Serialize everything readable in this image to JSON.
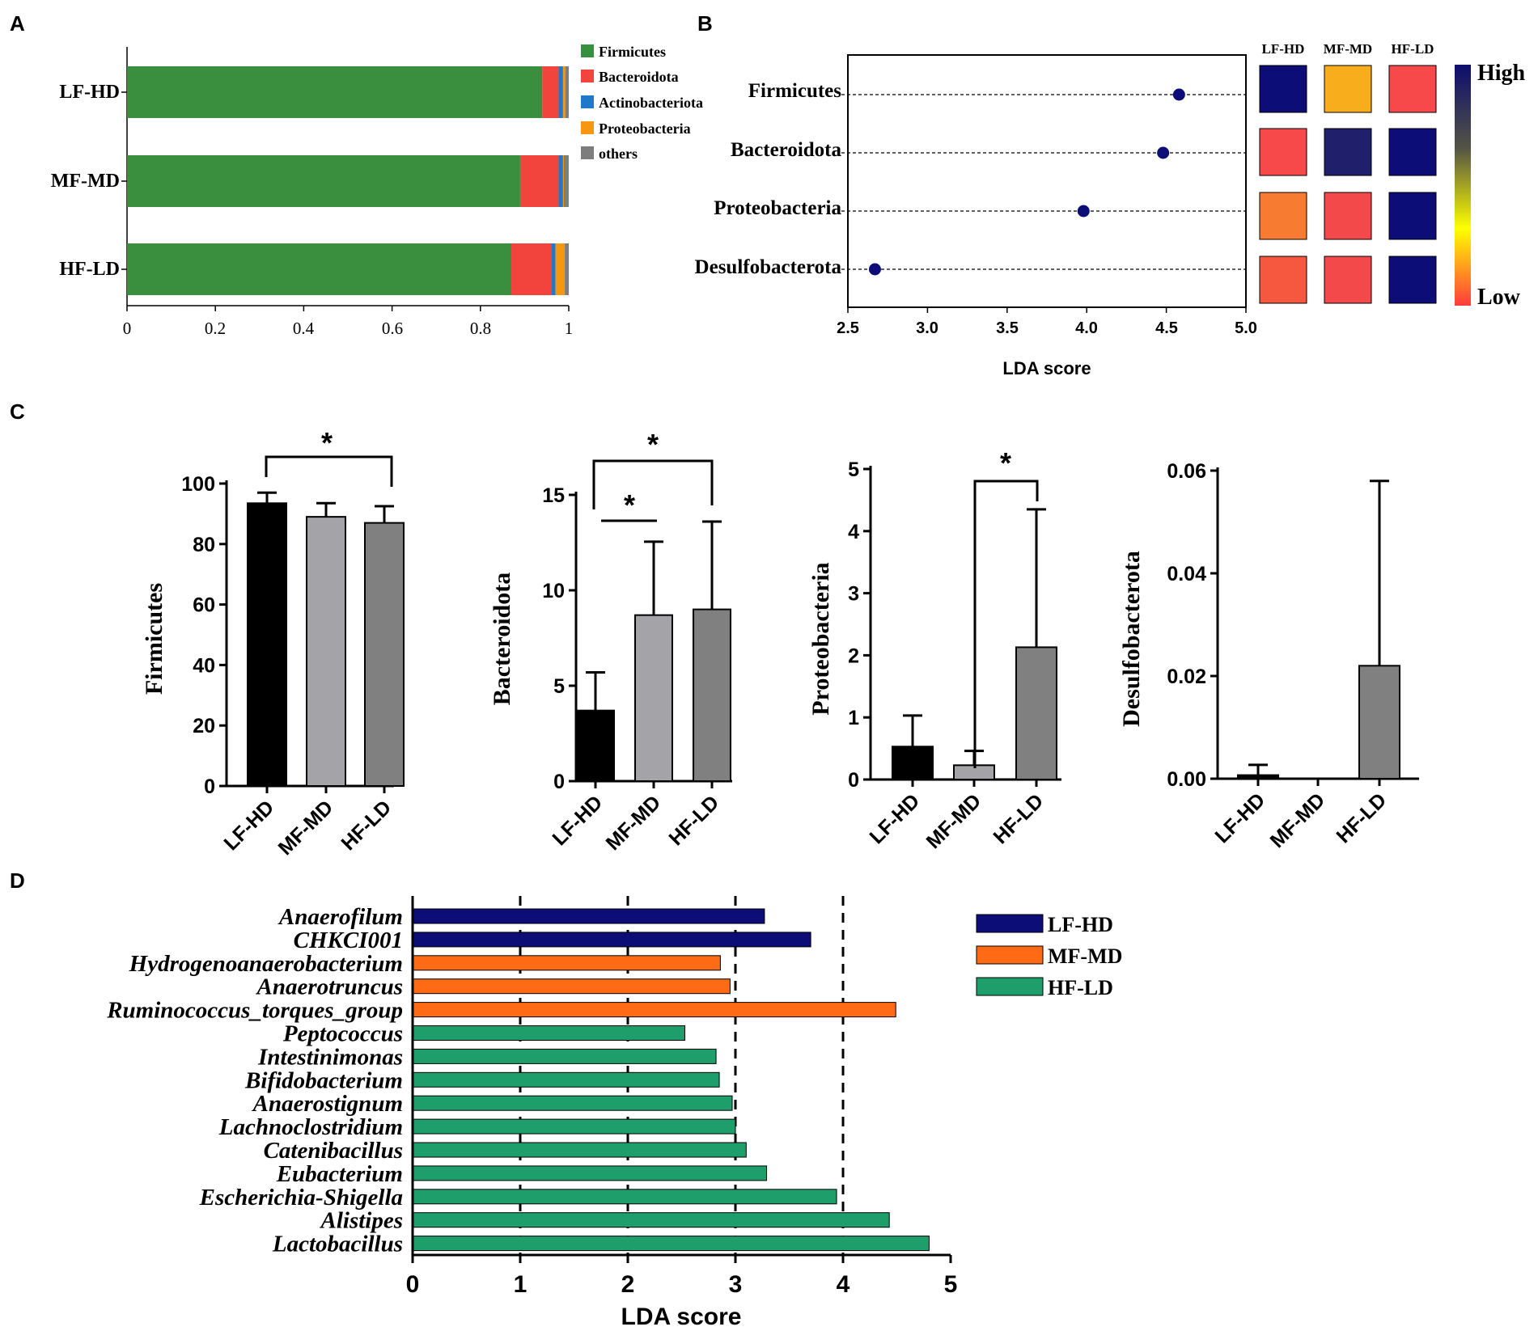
{
  "figure": {
    "panel_labels": {
      "a": "A",
      "b": "B",
      "c": "C",
      "d": "D"
    }
  },
  "colors": {
    "firmicutes": "#3a8f3f",
    "bacteroidota": "#f2433c",
    "actinobacteriota": "#1f78c8",
    "proteobacteria": "#f7960f",
    "others": "#7d7d7d",
    "navy": "#0d0d78",
    "orange": "#ff6a14",
    "teal": "#1e9e6a",
    "black_bar": "#000000",
    "light_gray_bar": "#a3a3a8",
    "dark_gray_bar": "#808080",
    "gradient_high": "#0d0d6e",
    "gradient_mid1": "#333366",
    "gradient_mid2": "#ffff00",
    "gradient_low": "#ff3b3b"
  },
  "chart_data": [
    {
      "id": "A",
      "type": "bar",
      "orientation": "horizontal",
      "stacked": true,
      "categories": [
        "LF-HD",
        "MF-MD",
        "HF-LD"
      ],
      "series": [
        {
          "name": "Firmicutes",
          "color_key": "firmicutes",
          "values": [
            0.94,
            0.89,
            0.87
          ]
        },
        {
          "name": "Bacteroidota",
          "color_key": "bacteroidota",
          "values": [
            0.037,
            0.087,
            0.09
          ]
        },
        {
          "name": "Actinobacteriota",
          "color_key": "actinobacteriota",
          "values": [
            0.01,
            0.01,
            0.01
          ]
        },
        {
          "name": "Proteobacteria",
          "color_key": "proteobacteria",
          "values": [
            0.005,
            0.002,
            0.021
          ]
        },
        {
          "name": "others",
          "color_key": "others",
          "values": [
            0.008,
            0.011,
            0.009
          ]
        }
      ],
      "xlim": [
        0,
        1
      ],
      "xticks": [
        "0",
        "0.2",
        "0.4",
        "0.6",
        "0.8",
        "1"
      ],
      "xtick_values": [
        0,
        0.2,
        0.4,
        0.6,
        0.8,
        1
      ],
      "legend_position": "top-right"
    },
    {
      "id": "B",
      "type": "scatter",
      "title": "",
      "xlabel": "LDA score",
      "xlim": [
        2.5,
        5.0
      ],
      "xticks": [
        "2.5",
        "3.0",
        "3.5",
        "4.0",
        "4.5",
        "5.0"
      ],
      "xtick_values": [
        2.5,
        3.0,
        3.5,
        4.0,
        4.5,
        5.0
      ],
      "categories": [
        "Firmicutes",
        "Bacteroidota",
        "Proteobacteria",
        "Desulfobacterota"
      ],
      "values": [
        4.58,
        4.48,
        3.98,
        2.67
      ],
      "heatmap": {
        "columns": [
          "LF-HD",
          "MF-MD",
          "HF-LD"
        ],
        "rows": [
          [
            "#0d0d78",
            "#f7ad1c",
            "#f7484a"
          ],
          [
            "#f7484a",
            "#1f1f6c",
            "#0d0d78"
          ],
          [
            "#f77c32",
            "#f4494b",
            "#0d0d78"
          ],
          [
            "#f6583f",
            "#f4494b",
            "#0d0d78"
          ]
        ],
        "scale_high": "High",
        "scale_low": "Low"
      }
    },
    {
      "id": "C1",
      "type": "bar",
      "ylabel": "Firmicutes",
      "categories": [
        "LF-HD",
        "MF-MD",
        "HF-LD"
      ],
      "values": [
        93.5,
        89,
        87
      ],
      "errors": [
        3.5,
        4.5,
        5.5
      ],
      "ylim": [
        0,
        100
      ],
      "yticks": [
        "0",
        "20",
        "40",
        "60",
        "80",
        "100"
      ],
      "ytick_values": [
        0,
        20,
        40,
        60,
        80,
        100
      ],
      "significance": [
        {
          "from": 0,
          "to": 2,
          "label": "*"
        }
      ]
    },
    {
      "id": "C2",
      "type": "bar",
      "ylabel": "Bacteroidota",
      "categories": [
        "LF-HD",
        "MF-MD",
        "HF-LD"
      ],
      "values": [
        3.7,
        8.7,
        9.0
      ],
      "errors": [
        2.0,
        3.85,
        4.6
      ],
      "ylim": [
        0,
        15
      ],
      "yticks": [
        "0",
        "5",
        "10",
        "15"
      ],
      "ytick_values": [
        0,
        5,
        10,
        15
      ],
      "significance": [
        {
          "from": 0,
          "to": 1,
          "label": "*"
        },
        {
          "from": 0,
          "to": 2,
          "label": "*"
        }
      ]
    },
    {
      "id": "C3",
      "type": "bar",
      "ylabel": "Proteobacteria",
      "categories": [
        "LF-HD",
        "MF-MD",
        "HF-LD"
      ],
      "values": [
        0.53,
        0.23,
        2.13
      ],
      "errors": [
        0.5,
        0.23,
        2.22
      ],
      "ylim": [
        0,
        5
      ],
      "yticks": [
        "0",
        "1",
        "2",
        "3",
        "4",
        "5"
      ],
      "ytick_values": [
        0,
        1,
        2,
        3,
        4,
        5
      ],
      "significance": [
        {
          "from": 1,
          "to": 2,
          "label": "*"
        }
      ]
    },
    {
      "id": "C4",
      "type": "bar",
      "ylabel": "Desulfobacterota",
      "categories": [
        "LF-HD",
        "MF-MD",
        "HF-LD"
      ],
      "values": [
        0.0007,
        0.0,
        0.022
      ],
      "errors": [
        0.002,
        0.0,
        0.036
      ],
      "ylim": [
        0,
        0.06
      ],
      "yticks": [
        "0.00",
        "0.02",
        "0.04",
        "0.06"
      ],
      "ytick_values": [
        0,
        0.02,
        0.04,
        0.06
      ],
      "significance": []
    },
    {
      "id": "D",
      "type": "bar",
      "orientation": "horizontal",
      "xlabel": "LDA score",
      "xlim": [
        0,
        5
      ],
      "xticks": [
        "0",
        "1",
        "2",
        "3",
        "4",
        "5"
      ],
      "xtick_values": [
        0,
        1,
        2,
        3,
        4,
        5
      ],
      "dashed_gridlines": [
        1,
        2,
        3,
        4
      ],
      "categories": [
        "Anaerofilum",
        "CHKCI001",
        "Hydrogenoanaerobacterium",
        "Anaerotruncus",
        "Ruminococcus_torques_group",
        "Peptococcus",
        "Intestinimonas",
        "Bifidobacterium",
        "Anaerostignum",
        "Lachnoclostridium",
        "Catenibacillus",
        "Eubacterium",
        "Escherichia-Shigella",
        "Alistipes",
        "Lactobacillus"
      ],
      "values": [
        3.27,
        3.7,
        2.86,
        2.95,
        4.49,
        2.53,
        2.82,
        2.85,
        2.97,
        3.0,
        3.1,
        3.29,
        3.94,
        4.43,
        4.8
      ],
      "groups": [
        "LF-HD",
        "LF-HD",
        "MF-MD",
        "MF-MD",
        "MF-MD",
        "HF-LD",
        "HF-LD",
        "HF-LD",
        "HF-LD",
        "HF-LD",
        "HF-LD",
        "HF-LD",
        "HF-LD",
        "HF-LD",
        "HF-LD"
      ],
      "legend": [
        {
          "name": "LF-HD",
          "color_key": "navy"
        },
        {
          "name": "MF-MD",
          "color_key": "orange"
        },
        {
          "name": "HF-LD",
          "color_key": "teal"
        }
      ],
      "legend_position": "top-right"
    }
  ]
}
